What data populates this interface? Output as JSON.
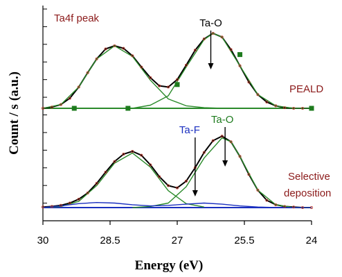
{
  "chart_data": {
    "type": "line",
    "title": "",
    "xlabel": "Energy (eV)",
    "ylabel": "Count / s (a.u.)",
    "x_reversed": true,
    "xlim": [
      30,
      24
    ],
    "x_ticks": [
      "30",
      "28.5",
      "27",
      "25.5",
      "24"
    ],
    "x_tick_values": [
      30,
      28.5,
      27,
      25.5,
      24
    ],
    "y_ticks_unlabeled": 12,
    "panels": [
      {
        "name": "PEALD",
        "annotation": "Ta4f peak",
        "label": "PEALD",
        "peak_labels": [
          {
            "text": "Ta-O",
            "x": 26.25
          }
        ],
        "baseline": 0,
        "series": [
          {
            "role": "envelope",
            "color": "#000000",
            "x": [
              30,
              29.8,
              29.6,
              29.4,
              29.2,
              29.0,
              28.8,
              28.6,
              28.4,
              28.2,
              28.0,
              27.8,
              27.6,
              27.4,
              27.2,
              27.0,
              26.8,
              26.6,
              26.4,
              26.2,
              26.0,
              25.8,
              25.6,
              25.4,
              25.2,
              25.0,
              24.8,
              24.6,
              24.4,
              24.2,
              24.0
            ],
            "y": [
              0.0,
              0.02,
              0.06,
              0.16,
              0.34,
              0.57,
              0.79,
              0.95,
              1.0,
              0.96,
              0.84,
              0.66,
              0.49,
              0.36,
              0.34,
              0.46,
              0.69,
              0.93,
              1.11,
              1.2,
              1.14,
              0.94,
              0.68,
              0.42,
              0.22,
              0.1,
              0.04,
              0.01,
              0.0,
              0.0,
              0.0
            ]
          },
          {
            "role": "component Ta4f7/2",
            "color": "#2a8a2a",
            "x": [
              30,
              29.6,
              29.2,
              28.8,
              28.4,
              28.0,
              27.6,
              27.2,
              26.8,
              26.4,
              26.0
            ],
            "y": [
              0.0,
              0.06,
              0.34,
              0.79,
              1.0,
              0.83,
              0.45,
              0.15,
              0.04,
              0.01,
              0.0
            ]
          },
          {
            "role": "component Ta4f5/2",
            "color": "#2a8a2a",
            "x": [
              28.0,
              27.6,
              27.2,
              26.8,
              26.4,
              26.2,
              26.0,
              25.6,
              25.2,
              24.8,
              24.4,
              24.0
            ],
            "y": [
              0.0,
              0.05,
              0.2,
              0.66,
              1.1,
              1.2,
              1.14,
              0.68,
              0.22,
              0.04,
              0.0,
              0.0
            ]
          },
          {
            "role": "data points",
            "color": "#c0392b",
            "marker": "circle",
            "x": [
              30,
              29.8,
              29.6,
              29.4,
              29.2,
              29.0,
              28.8,
              28.6,
              28.4,
              28.2,
              28.0,
              27.8,
              27.6,
              27.4,
              27.2,
              27.0,
              26.8,
              26.6,
              26.4,
              26.2,
              26.0,
              25.8,
              25.6,
              25.4,
              25.2,
              25.0,
              24.8,
              24.6,
              24.4,
              24.2,
              24.0
            ],
            "y": [
              0.0,
              0.02,
              0.06,
              0.16,
              0.34,
              0.57,
              0.79,
              0.95,
              1.0,
              0.96,
              0.84,
              0.66,
              0.49,
              0.36,
              0.34,
              0.46,
              0.69,
              0.93,
              1.11,
              1.2,
              1.14,
              0.94,
              0.68,
              0.42,
              0.22,
              0.1,
              0.04,
              0.01,
              0.0,
              0.0,
              0.0
            ]
          },
          {
            "role": "square markers",
            "color": "#1e7b1e",
            "marker": "square",
            "x": [
              29.3,
              28.1,
              27.0,
              25.6,
              24.0
            ],
            "y": [
              0.0,
              0.0,
              0.38,
              0.86,
              0.0
            ]
          }
        ]
      },
      {
        "name": "Selective deposition",
        "label": "Selective deposition",
        "peak_labels": [
          {
            "text": "Ta-F",
            "x": 26.6,
            "color": "#1a2fbf"
          },
          {
            "text": "Ta-O",
            "x": 25.9,
            "color": "#1e7b1e"
          }
        ],
        "baseline": 0,
        "series": [
          {
            "role": "envelope",
            "color": "#000000",
            "x": [
              30,
              29.8,
              29.6,
              29.4,
              29.2,
              29.0,
              28.8,
              28.6,
              28.4,
              28.2,
              28.0,
              27.8,
              27.6,
              27.4,
              27.2,
              27.0,
              26.8,
              26.6,
              26.4,
              26.2,
              26.0,
              25.8,
              25.6,
              25.4,
              25.2,
              25.0,
              24.8,
              24.6,
              24.4,
              24.2,
              24.0
            ],
            "y": [
              0.01,
              0.02,
              0.04,
              0.08,
              0.15,
              0.26,
              0.43,
              0.63,
              0.82,
              0.95,
              1.0,
              0.93,
              0.76,
              0.55,
              0.39,
              0.35,
              0.47,
              0.71,
              0.98,
              1.19,
              1.27,
              1.17,
              0.91,
              0.59,
              0.31,
              0.13,
              0.05,
              0.02,
              0.01,
              0.0,
              0.0
            ]
          },
          {
            "role": "component Ta-O 4f7/2",
            "color": "#2a8a2a",
            "x": [
              30,
              29.6,
              29.2,
              28.8,
              28.4,
              28.0,
              27.6,
              27.2,
              26.8,
              26.4
            ],
            "y": [
              0.0,
              0.02,
              0.11,
              0.39,
              0.79,
              0.97,
              0.72,
              0.3,
              0.07,
              0.01
            ]
          },
          {
            "role": "component Ta-O 4f5/2",
            "color": "#2a8a2a",
            "x": [
              28.0,
              27.6,
              27.2,
              26.8,
              26.4,
              26.0,
              25.8,
              25.6,
              25.2,
              24.8,
              24.4,
              24.0
            ],
            "y": [
              0.0,
              0.02,
              0.08,
              0.37,
              0.88,
              1.24,
              1.17,
              0.91,
              0.31,
              0.05,
              0.0,
              0.0
            ]
          },
          {
            "role": "component Ta-F",
            "color": "#1a2fbf",
            "x": [
              30,
              29.6,
              29.2,
              28.8,
              28.4,
              28.0,
              27.6,
              27.2,
              26.8,
              26.4,
              26.0,
              25.6,
              25.2,
              24.8,
              24.4,
              24.0
            ],
            "y": [
              0.0,
              0.03,
              0.07,
              0.09,
              0.08,
              0.05,
              0.03,
              0.04,
              0.06,
              0.08,
              0.06,
              0.03,
              0.01,
              0.0,
              0.0,
              0.0
            ]
          },
          {
            "role": "data points",
            "color": "#c0392b",
            "marker": "circle",
            "x": [
              30,
              29.8,
              29.6,
              29.4,
              29.2,
              29.0,
              28.8,
              28.6,
              28.4,
              28.2,
              28.0,
              27.8,
              27.6,
              27.4,
              27.2,
              27.0,
              26.8,
              26.6,
              26.4,
              26.2,
              26.0,
              25.8,
              25.6,
              25.4,
              25.2,
              25.0,
              24.8,
              24.6,
              24.4,
              24.2,
              24.0
            ],
            "y": [
              0.01,
              0.02,
              0.04,
              0.08,
              0.15,
              0.26,
              0.43,
              0.63,
              0.82,
              0.95,
              1.0,
              0.93,
              0.76,
              0.55,
              0.39,
              0.35,
              0.47,
              0.71,
              0.98,
              1.19,
              1.27,
              1.17,
              0.91,
              0.59,
              0.31,
              0.13,
              0.05,
              0.02,
              0.01,
              0.0,
              0.0
            ]
          }
        ]
      }
    ],
    "colors": {
      "envelope": "#000000",
      "component": "#2a8a2a",
      "taf": "#1a2fbf",
      "data_points": "#c0392b",
      "label_red": "#8b1a1a",
      "label_green": "#1e7b1e",
      "label_blue": "#1a2fbf"
    }
  }
}
